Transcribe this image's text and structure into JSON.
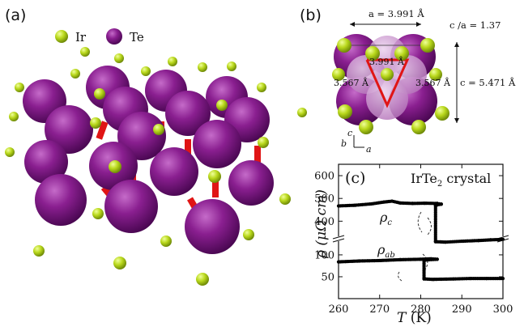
{
  "panel_a": {
    "label": "(a)",
    "legend": [
      {
        "name": "Ir",
        "color": "#b5d31a"
      },
      {
        "name": "Te",
        "color": "#7a1380"
      }
    ]
  },
  "panel_b": {
    "label": "(b)",
    "a_param": "a = 3.991 Å",
    "c_over_a": "c /a = 1.37",
    "triangle_top": "3.991 Å",
    "triangle_left": "3.567 Å",
    "triangle_right": "3.567 Å",
    "c_param": "c = 5.471 Å",
    "axes": {
      "c": "c",
      "b": "b",
      "a": "a"
    }
  },
  "colors": {
    "ir": "#b5d31a",
    "te": "#7a1380",
    "te_light": "#c98fcc",
    "bond": "#e01515",
    "triangle": "#e01515",
    "data": "#000000"
  },
  "chart_data": {
    "type": "scatter",
    "label": "(c)",
    "title": "IrTe2 crystal",
    "title_main": "IrTe",
    "title_sub": "2",
    "title_tail": " crystal",
    "xlabel": "T (K)",
    "xlabel_sym": "T",
    "xlabel_unit": " (K)",
    "ylabel": "ρ (μΩ cm)",
    "xlim": [
      260,
      300
    ],
    "x_ticks": [
      260,
      270,
      280,
      290,
      300
    ],
    "y_ticks_upper": [
      400,
      500,
      600
    ],
    "y_ticks_lower": [
      50,
      100
    ],
    "upper_ylim": [
      330,
      650
    ],
    "lower_ylim": [
      0,
      135
    ],
    "series": [
      {
        "name": "ρc",
        "name_main": "ρ",
        "name_sub": "c",
        "points": [
          [
            260,
            467
          ],
          [
            264,
            470
          ],
          [
            268,
            476
          ],
          [
            271,
            484
          ],
          [
            273,
            488
          ],
          [
            275,
            480
          ],
          [
            278,
            478
          ],
          [
            281,
            479
          ],
          [
            284,
            478
          ],
          [
            285,
            475
          ],
          [
            283.6,
            470
          ],
          [
            283.6,
            310
          ],
          [
            286,
            308
          ],
          [
            290,
            312
          ],
          [
            294,
            315
          ],
          [
            297,
            318
          ],
          [
            300,
            320
          ]
        ]
      },
      {
        "name": "ρab",
        "name_main": "ρ",
        "name_sub": "ab",
        "points": [
          [
            260,
            84
          ],
          [
            265,
            86
          ],
          [
            270,
            87
          ],
          [
            275,
            89
          ],
          [
            280,
            90
          ],
          [
            282.5,
            91
          ],
          [
            284,
            90
          ],
          [
            280.8,
            88
          ],
          [
            280.8,
            45
          ],
          [
            283,
            44
          ],
          [
            288,
            45
          ],
          [
            292,
            46
          ],
          [
            296,
            46
          ],
          [
            300,
            46
          ]
        ]
      }
    ]
  }
}
